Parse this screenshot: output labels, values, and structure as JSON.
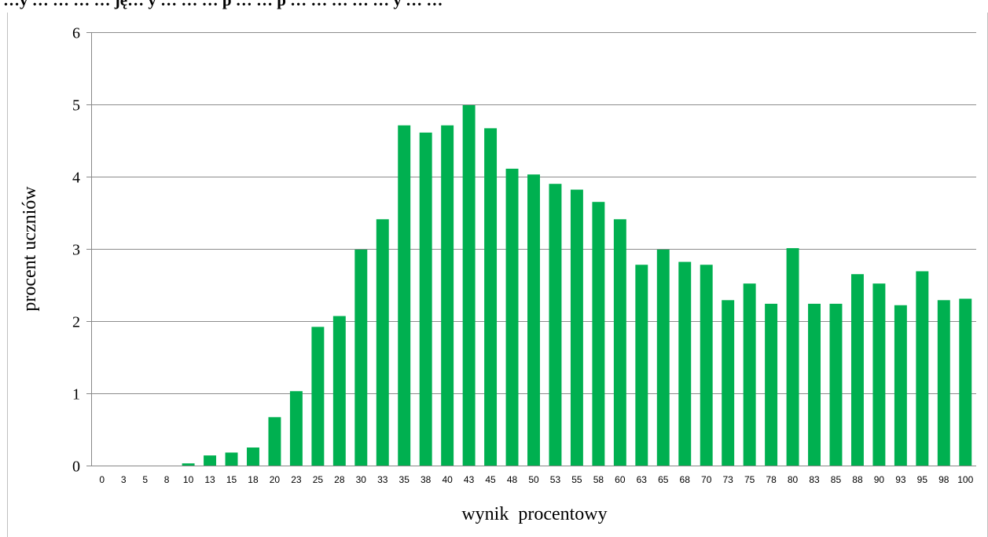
{
  "chart_data": {
    "type": "bar",
    "title": "…y … … … … ję… y … … … p … … p … … … … … y … …",
    "xlabel": "wynik  procentowy",
    "ylabel": "procent uczniów",
    "ylim": [
      0,
      6
    ],
    "yticks": [
      0,
      1,
      2,
      3,
      4,
      5,
      6
    ],
    "grid": true,
    "bar_color": "#00b050",
    "categories": [
      "0",
      "3",
      "5",
      "8",
      "10",
      "13",
      "15",
      "18",
      "20",
      "23",
      "25",
      "28",
      "30",
      "33",
      "35",
      "38",
      "40",
      "43",
      "45",
      "48",
      "50",
      "53",
      "55",
      "58",
      "60",
      "63",
      "65",
      "68",
      "70",
      "73",
      "75",
      "78",
      "80",
      "83",
      "85",
      "88",
      "90",
      "93",
      "95",
      "98",
      "100"
    ],
    "values": [
      0,
      0,
      0,
      0,
      0.03,
      0.14,
      0.18,
      0.25,
      0.67,
      1.03,
      1.92,
      2.07,
      2.99,
      3.41,
      4.71,
      4.61,
      4.71,
      4.99,
      4.67,
      4.11,
      4.03,
      3.9,
      3.82,
      3.65,
      3.41,
      2.78,
      2.99,
      2.82,
      2.78,
      2.29,
      2.52,
      2.24,
      3.01,
      2.24,
      2.24,
      2.65,
      2.52,
      2.22,
      2.69,
      2.29,
      2.31
    ]
  }
}
